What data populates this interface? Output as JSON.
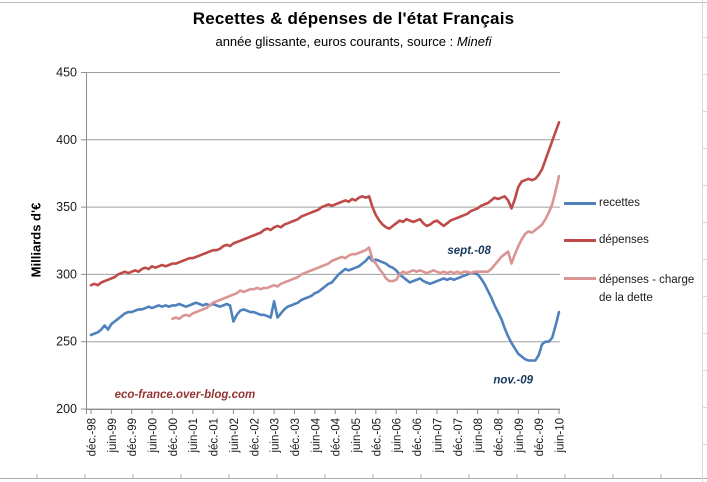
{
  "page": {
    "title": "Recettes & dépenses de l'état Français",
    "subtitle_text": "année glissante, euros courants, source : ",
    "subtitle_source": "Minefi"
  },
  "y_axis": {
    "label": "Milliards d'€"
  },
  "legend": {
    "items": [
      {
        "label": "recettes",
        "color": "#4F81BD"
      },
      {
        "label": "dépenses",
        "color": "#BE4B48"
      },
      {
        "label": "dépenses - charge de la dette",
        "color": "#D99694"
      }
    ]
  },
  "chart_data": {
    "type": "line",
    "title": "Recettes & dépenses de l'état Français",
    "subtitle": "année glissante, euros courants, source : Minefi",
    "ylabel": "Milliards d'€",
    "ylim": [
      200,
      450
    ],
    "yticks": [
      200,
      250,
      300,
      350,
      400,
      450
    ],
    "grid": true,
    "legend_position": "right",
    "x_unit": "month",
    "n_points": 139,
    "x_tick_interval_months": 6,
    "x_tick_labels": [
      "déc.-98",
      "juin-99",
      "déc.-99",
      "juin-00",
      "déc.-00",
      "juin-01",
      "déc.-01",
      "juin-02",
      "déc.-02",
      "juin-03",
      "déc.-03",
      "juin-04",
      "déc.-04",
      "juin-05",
      "déc.-05",
      "juin-06",
      "déc.-06",
      "juin-07",
      "déc.-07",
      "juin-08",
      "déc.-08",
      "juin-09",
      "déc.-09",
      "juin-10"
    ],
    "series": [
      {
        "name": "recettes",
        "color": "#4F81BD",
        "start_month": 0,
        "values": [
          255,
          256,
          257,
          259,
          262,
          259,
          263,
          265,
          267,
          269,
          271,
          272,
          272,
          273,
          274,
          274,
          275,
          276,
          275,
          276,
          277,
          276,
          277,
          276,
          277,
          277,
          278,
          277,
          276,
          277,
          278,
          279,
          278,
          277,
          278,
          277,
          278,
          277,
          276,
          277,
          278,
          277,
          265,
          270,
          273,
          274,
          273,
          272,
          272,
          271,
          270,
          270,
          269,
          268,
          280,
          268,
          271,
          274,
          276,
          277,
          278,
          279,
          281,
          282,
          283,
          284,
          286,
          287,
          289,
          291,
          293,
          294,
          297,
          300,
          302,
          304,
          303,
          304,
          305,
          306,
          308,
          310,
          313,
          310,
          311,
          310,
          309,
          308,
          306,
          305,
          303,
          300,
          298,
          296,
          294,
          295,
          296,
          297,
          295,
          294,
          293,
          294,
          295,
          296,
          297,
          296,
          297,
          296,
          297,
          298,
          299,
          300,
          301,
          301,
          300,
          297,
          293,
          288,
          283,
          277,
          272,
          267,
          260,
          254,
          249,
          245,
          241,
          239,
          237,
          236,
          236,
          236,
          240,
          248,
          250,
          250,
          253,
          262,
          272
        ]
      },
      {
        "name": "dépenses",
        "color": "#BE4B48",
        "start_month": 0,
        "values": [
          292,
          293,
          292,
          294,
          295,
          296,
          297,
          298,
          300,
          301,
          302,
          301,
          302,
          303,
          302,
          304,
          305,
          304,
          306,
          305,
          306,
          307,
          306,
          307,
          308,
          308,
          309,
          310,
          311,
          312,
          312,
          313,
          314,
          315,
          316,
          317,
          318,
          318,
          319,
          321,
          322,
          321,
          323,
          324,
          325,
          326,
          327,
          328,
          329,
          330,
          331,
          333,
          334,
          333,
          335,
          336,
          335,
          337,
          338,
          339,
          340,
          341,
          343,
          344,
          345,
          346,
          347,
          348,
          350,
          351,
          352,
          351,
          352,
          353,
          354,
          355,
          354,
          356,
          355,
          357,
          358,
          357,
          358,
          350,
          344,
          340,
          337,
          335,
          334,
          336,
          338,
          340,
          339,
          341,
          340,
          339,
          340,
          341,
          338,
          336,
          337,
          339,
          340,
          338,
          336,
          338,
          340,
          341,
          342,
          343,
          344,
          345,
          347,
          348,
          349,
          351,
          352,
          353,
          355,
          357,
          356,
          357,
          358,
          355,
          349,
          356,
          365,
          369,
          370,
          371,
          370,
          371,
          374,
          378,
          385,
          392,
          399,
          406,
          413
        ]
      },
      {
        "name": "dépenses - charge de la dette",
        "color": "#D99694",
        "start_month": 24,
        "values": [
          267,
          268,
          267,
          269,
          270,
          269,
          271,
          272,
          273,
          274,
          275,
          277,
          279,
          280,
          281,
          282,
          283,
          284,
          285,
          286,
          288,
          287,
          288,
          289,
          289,
          290,
          289,
          290,
          290,
          291,
          292,
          291,
          293,
          294,
          295,
          296,
          297,
          298,
          300,
          301,
          302,
          303,
          304,
          305,
          306,
          307,
          308,
          310,
          311,
          312,
          313,
          312,
          314,
          315,
          315,
          316,
          317,
          318,
          320,
          311,
          308,
          304,
          301,
          297,
          295,
          295,
          296,
          300,
          302,
          301,
          302,
          303,
          302,
          303,
          302,
          301,
          302,
          303,
          302,
          301,
          302,
          301,
          302,
          301,
          302,
          301,
          302,
          302,
          301,
          302,
          302,
          302,
          302,
          302,
          304,
          307,
          310,
          313,
          315,
          317,
          308,
          315,
          321,
          326,
          330,
          332,
          331,
          333,
          335,
          337,
          341,
          346,
          352,
          362,
          373
        ]
      }
    ],
    "annotations": [
      {
        "text": "sept.-08",
        "month": 111.5,
        "value": 318,
        "color": "#17375D"
      },
      {
        "text": "nov.-09",
        "month": 124.5,
        "value": 222,
        "color": "#17375D"
      },
      {
        "text": "eco-france.over-blog.com",
        "month": 27.7,
        "value": 211,
        "color": "#943634"
      }
    ]
  }
}
